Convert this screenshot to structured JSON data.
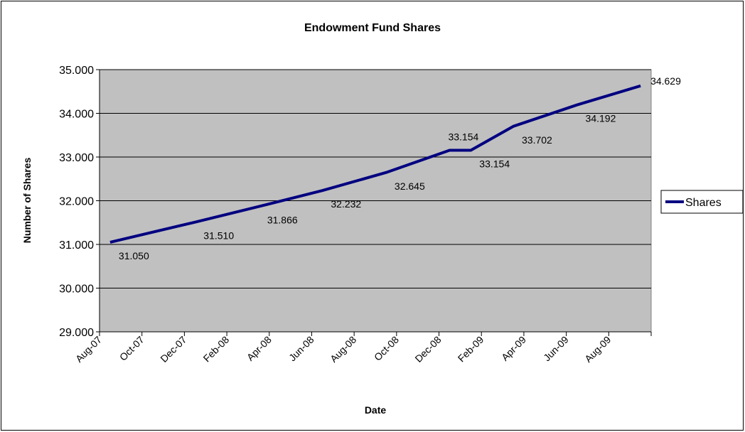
{
  "chart_data": {
    "type": "line",
    "title": "Endowment Fund Shares",
    "x_label": "Date",
    "y_label": "Number of Shares",
    "x": [
      "2007-08",
      "2007-12",
      "2008-03",
      "2008-06",
      "2008-09",
      "2008-12",
      "2009-01",
      "2009-03",
      "2009-06",
      "2009-09"
    ],
    "series": [
      {
        "name": "Shares",
        "color": "#000080",
        "values": [
          31050,
          31510,
          31866,
          32232,
          32645,
          33154,
          33154,
          33702,
          34192,
          34629
        ],
        "value_labels": [
          "31.050",
          "31.510",
          "31.866",
          "32.232",
          "32.645",
          "33.154",
          "33.154",
          "33.702",
          "34.192",
          "34.629"
        ]
      }
    ],
    "xlim": [
      "2007-08",
      "2009-10"
    ],
    "xticks": [
      {
        "value": "2007-08",
        "label": "Aug-07"
      },
      {
        "value": "2007-10",
        "label": "Oct-07"
      },
      {
        "value": "2007-12",
        "label": "Dec-07"
      },
      {
        "value": "2008-02",
        "label": "Feb-08"
      },
      {
        "value": "2008-04",
        "label": "Apr-08"
      },
      {
        "value": "2008-06",
        "label": "Jun-08"
      },
      {
        "value": "2008-08",
        "label": "Aug-08"
      },
      {
        "value": "2008-10",
        "label": "Oct-08"
      },
      {
        "value": "2008-12",
        "label": "Dec-08"
      },
      {
        "value": "2009-02",
        "label": "Feb-09"
      },
      {
        "value": "2009-04",
        "label": "Apr-09"
      },
      {
        "value": "2009-06",
        "label": "Jun-09"
      },
      {
        "value": "2009-08",
        "label": "Aug-09"
      }
    ],
    "ylim": [
      29000,
      35000
    ],
    "yticks": [
      {
        "value": 29000,
        "label": "29.000"
      },
      {
        "value": 30000,
        "label": "30.000"
      },
      {
        "value": 31000,
        "label": "31.000"
      },
      {
        "value": 32000,
        "label": "32.000"
      },
      {
        "value": 33000,
        "label": "33.000"
      },
      {
        "value": 34000,
        "label": "34.000"
      },
      {
        "value": 35000,
        "label": "35.000"
      }
    ],
    "grid": true,
    "legend": "right",
    "plot_background": "#c0c0c0"
  }
}
